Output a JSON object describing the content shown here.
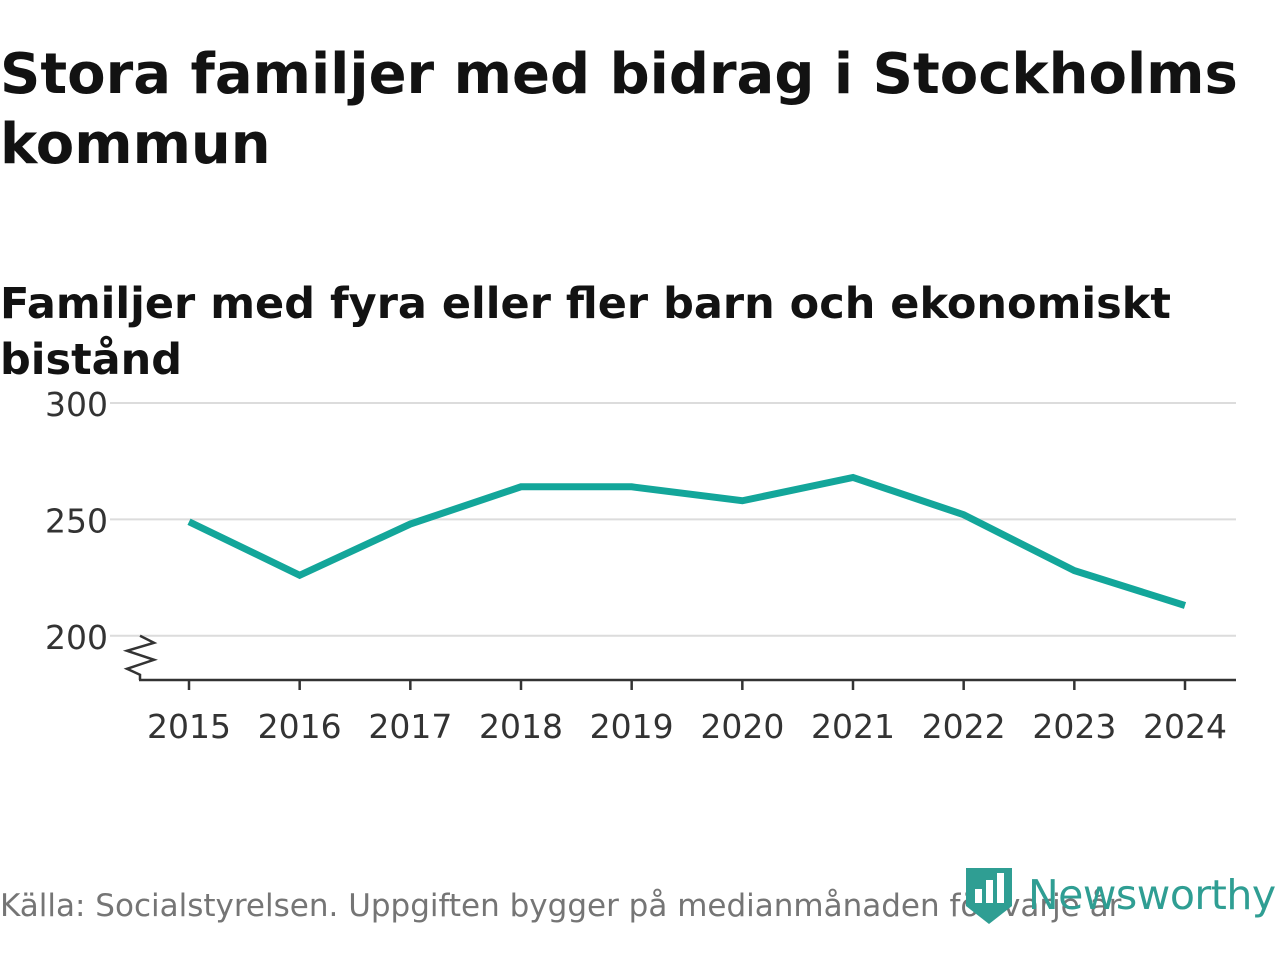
{
  "chart_data": {
    "type": "line",
    "title": "Stora familjer med bidrag i Stockholms kommun",
    "subtitle": "Familjer med fyra eller fler barn och ekonomiskt bistånd",
    "categories": [
      "2015",
      "2016",
      "2017",
      "2018",
      "2019",
      "2020",
      "2021",
      "2022",
      "2023",
      "2024"
    ],
    "series": [
      {
        "name": "Familjer med fyra eller fler barn och ekonomiskt bistånd",
        "values": [
          249,
          226,
          248,
          264,
          264,
          258,
          268,
          252,
          228,
          213
        ]
      }
    ],
    "ylim": [
      181,
      300
    ],
    "yticks": [
      200,
      250,
      300
    ],
    "axis_break": true,
    "xlabel": "",
    "ylabel": "",
    "grid": true,
    "line_color": "#13a69a",
    "grid_color": "#dcdcdc",
    "axis_color": "#333333"
  },
  "footer": {
    "source": "Källa: Socialstyrelsen. Uppgiften bygger på medianmånaden för varje år",
    "brand": "Newsworthy",
    "brand_color": "#2f9e93"
  }
}
